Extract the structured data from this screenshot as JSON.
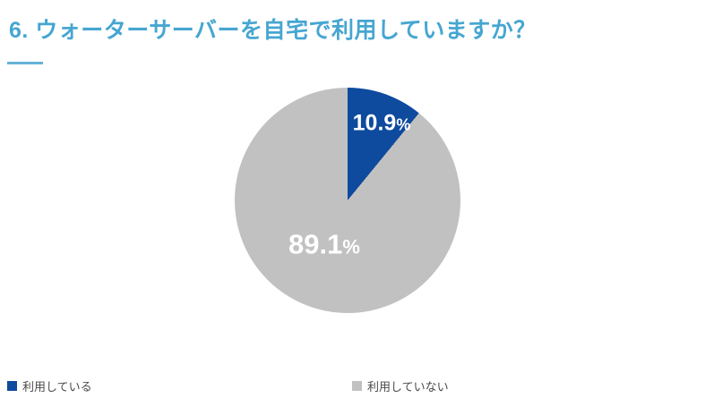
{
  "page": {
    "background_color": "#ffffff",
    "accent_color": "#46A6D1"
  },
  "header": {
    "title": "6. ウォーターサーバーを自宅で利用していますか？"
  },
  "chart_data": {
    "type": "pie",
    "title": "6. ウォーターサーバーを自宅で利用していますか？",
    "categories": [
      "利用している",
      "利用していない"
    ],
    "values": [
      10.9,
      89.1
    ],
    "unit": "%",
    "colors": [
      "#0E4A9E",
      "#C1C1C1"
    ],
    "label_text_color": "#ffffff",
    "start_angle": "top",
    "direction": "clockwise",
    "legend_position": "bottom"
  },
  "slices": [
    {
      "label_value": "10.9",
      "label_unit": "%"
    },
    {
      "label_value": "89.1",
      "label_unit": "%"
    }
  ],
  "legend": {
    "items": [
      {
        "label": "利用している",
        "color": "#0E4A9E"
      },
      {
        "label": "利用していない",
        "color": "#C1C1C1"
      }
    ]
  }
}
